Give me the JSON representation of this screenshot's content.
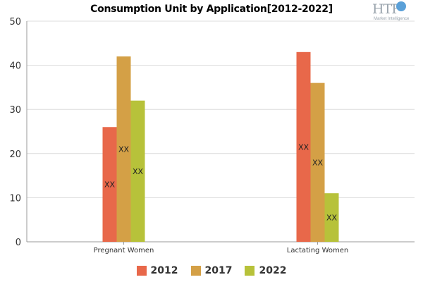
{
  "header": {
    "title": "Consumption Unit by  Application[2012-2022]",
    "logo_main": "HTF",
    "logo_sub": "Market Intelligence",
    "logo_icon": "globe-icon"
  },
  "chart_data": {
    "type": "bar",
    "title": "Consumption Unit by  Application[2012-2022]",
    "xlabel": "",
    "ylabel": "",
    "categories": [
      "Pregnant Women",
      "Lactating Women"
    ],
    "series": [
      {
        "name": "2012",
        "values": [
          26,
          43
        ],
        "color": "#e8684a",
        "labels": [
          "XX",
          "XX"
        ]
      },
      {
        "name": "2017",
        "values": [
          42,
          36
        ],
        "color": "#d4a046",
        "labels": [
          "XX",
          "XX"
        ]
      },
      {
        "name": "2022",
        "values": [
          32,
          11
        ],
        "color": "#b7c23a",
        "labels": [
          "XX",
          "XX"
        ]
      }
    ],
    "ylim": [
      0,
      50
    ],
    "yticks": [
      "0",
      "10",
      "20",
      "30",
      "40",
      "50"
    ],
    "grid": true,
    "legend": "bottom"
  }
}
